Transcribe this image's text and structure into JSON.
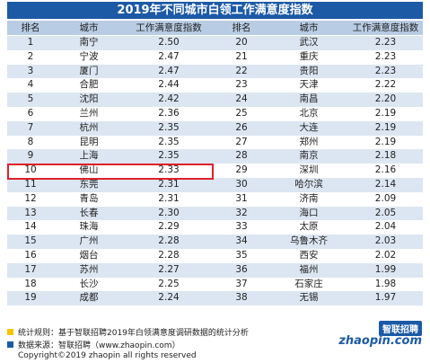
{
  "header": {
    "title": "2019年不同城市白领工作满意度指数"
  },
  "table": {
    "columns": [
      "排名",
      "城市",
      "工作满意度指数",
      "排名",
      "城市",
      "工作满意度指数"
    ],
    "rows": [
      [
        "1",
        "南宁",
        "2.50",
        "20",
        "武汉",
        "2.23"
      ],
      [
        "2",
        "宁波",
        "2.47",
        "21",
        "重庆",
        "2.23"
      ],
      [
        "3",
        "厦门",
        "2.47",
        "22",
        "贵阳",
        "2.23"
      ],
      [
        "4",
        "合肥",
        "2.44",
        "23",
        "天津",
        "2.22"
      ],
      [
        "5",
        "沈阳",
        "2.42",
        "24",
        "南昌",
        "2.20"
      ],
      [
        "6",
        "兰州",
        "2.36",
        "25",
        "北京",
        "2.19"
      ],
      [
        "7",
        "杭州",
        "2.35",
        "26",
        "大连",
        "2.19"
      ],
      [
        "8",
        "昆明",
        "2.35",
        "27",
        "郑州",
        "2.19"
      ],
      [
        "9",
        "上海",
        "2.35",
        "28",
        "南京",
        "2.18"
      ],
      [
        "10",
        "佛山",
        "2.33",
        "29",
        "深圳",
        "2.16"
      ],
      [
        "11",
        "东莞",
        "2.31",
        "30",
        "哈尔滨",
        "2.14"
      ],
      [
        "12",
        "青岛",
        "2.31",
        "31",
        "济南",
        "2.09"
      ],
      [
        "13",
        "长春",
        "2.30",
        "32",
        "海口",
        "2.05"
      ],
      [
        "14",
        "珠海",
        "2.29",
        "33",
        "太原",
        "2.04"
      ],
      [
        "15",
        "广州",
        "2.28",
        "34",
        "乌鲁木齐",
        "2.03"
      ],
      [
        "16",
        "烟台",
        "2.28",
        "35",
        "西安",
        "2.02"
      ],
      [
        "17",
        "苏州",
        "2.27",
        "36",
        "福州",
        "1.99"
      ],
      [
        "18",
        "长沙",
        "2.25",
        "37",
        "石家庄",
        "1.98"
      ],
      [
        "19",
        "成都",
        "2.24",
        "38",
        "无锡",
        "1.97"
      ]
    ]
  },
  "footer": {
    "rule": "统计规则：基于智联招聘2019年白领满意度调研数据的统计分析",
    "source": "数据来源：智联招聘（www.zhaopin.com）",
    "copyright": "Copyright©2019 zhaopin all rights reserved"
  },
  "logo": {
    "name": "智联招聘",
    "domain": "zhaopin.com"
  }
}
